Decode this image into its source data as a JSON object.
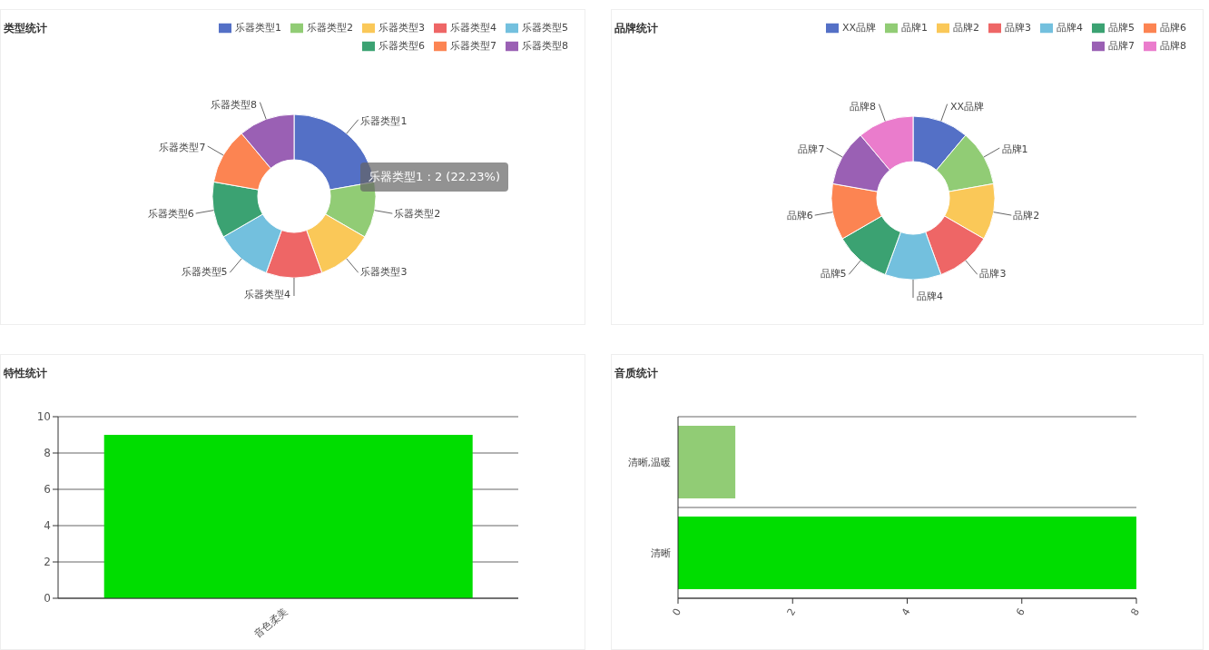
{
  "chart_data": [
    {
      "type": "donut",
      "title": "类型统计",
      "categories": [
        "乐器类型1",
        "乐器类型2",
        "乐器类型3",
        "乐器类型4",
        "乐器类型5",
        "乐器类型6",
        "乐器类型7",
        "乐器类型8"
      ],
      "values": [
        22.23,
        11.11,
        11.11,
        11.11,
        11.11,
        11.11,
        11.11,
        11.11
      ],
      "colors": [
        "#5470c6",
        "#91cc75",
        "#fac858",
        "#ee6666",
        "#73c0de",
        "#3ba272",
        "#fc8452",
        "#9a60b4"
      ],
      "legend": "top right",
      "annotations": [
        "乐器类型1 : 2 (22.23%)"
      ]
    },
    {
      "type": "donut",
      "title": "品牌统计",
      "categories": [
        "XX品牌",
        "品牌1",
        "品牌2",
        "品牌3",
        "品牌4",
        "品牌5",
        "品牌6",
        "品牌7",
        "品牌8"
      ],
      "values": [
        11.11,
        11.11,
        11.11,
        11.11,
        11.11,
        11.11,
        11.11,
        11.11,
        11.11
      ],
      "colors": [
        "#5470c6",
        "#91cc75",
        "#fac858",
        "#ee6666",
        "#73c0de",
        "#3ba272",
        "#fc8452",
        "#9a60b4",
        "#ea7ccc"
      ],
      "legend": "top right"
    },
    {
      "type": "bar",
      "title": "特性统计",
      "categories": [
        "音色柔美"
      ],
      "values": [
        9
      ],
      "color": "#00dd00",
      "ylim": [
        0,
        10
      ],
      "yticks": [
        0,
        2,
        4,
        6,
        8,
        10
      ],
      "grid": "y"
    },
    {
      "type": "bar",
      "title": "音质统计",
      "orientation": "horizontal",
      "categories": [
        "清晰,温暖",
        "清晰"
      ],
      "values": [
        1,
        8
      ],
      "colors": [
        "#91cc75",
        "#00dd00"
      ],
      "xlim": [
        0,
        8
      ],
      "xticks": [
        0,
        2,
        4,
        6,
        8
      ],
      "grid": "y"
    }
  ]
}
